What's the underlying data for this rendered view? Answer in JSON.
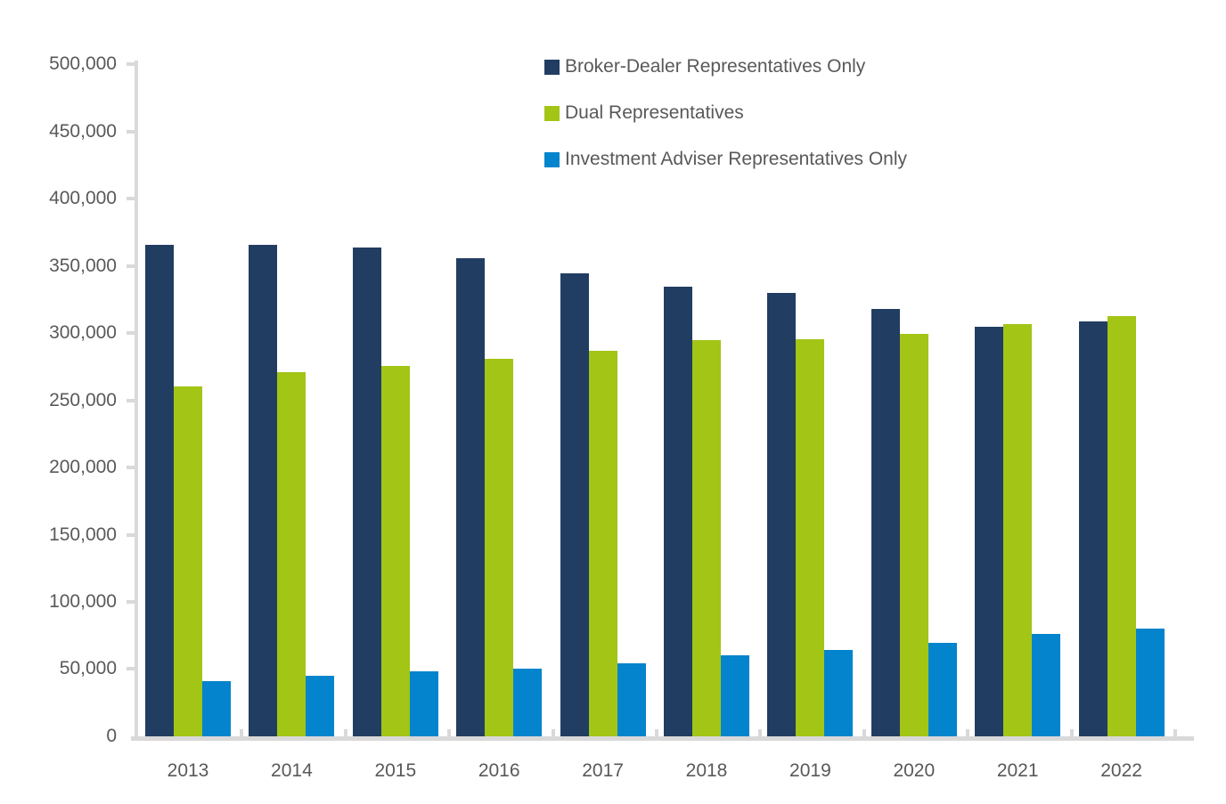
{
  "chart_data": {
    "type": "bar",
    "title": "",
    "categories": [
      "2013",
      "2014",
      "2015",
      "2016",
      "2017",
      "2018",
      "2019",
      "2020",
      "2021",
      "2022"
    ],
    "series": [
      {
        "name": "Broker-Dealer Representatives Only",
        "color": "#223D62",
        "values": [
          366000,
          366000,
          364000,
          356000,
          345000,
          335000,
          330000,
          318000,
          305000,
          309000
        ]
      },
      {
        "name": "Dual Representatives",
        "color": "#A2C516",
        "values": [
          261000,
          271000,
          276000,
          281000,
          287000,
          295000,
          296000,
          300000,
          307000,
          313000
        ]
      },
      {
        "name": "Investment Adviser Representatives Only",
        "color": "#0484CC",
        "values": [
          42000,
          46000,
          49000,
          51000,
          55000,
          61000,
          65000,
          70000,
          77000,
          81000
        ]
      }
    ],
    "y_axis": {
      "min": 0,
      "max": 500000,
      "step": 50000,
      "tick_labels_top_to_bottom": [
        "500,000",
        "450,000",
        "400,000",
        "350,000",
        "300,000",
        "250,000",
        "200,000",
        "150,000",
        "100,000",
        "50,000",
        "0"
      ]
    },
    "x_axis_label": "",
    "y_axis_label": "",
    "legend_position": "top-center",
    "grid": false,
    "colors": {
      "axis": "#D9D9D9",
      "labels": "#595959",
      "background": "#FFFFFF"
    }
  }
}
